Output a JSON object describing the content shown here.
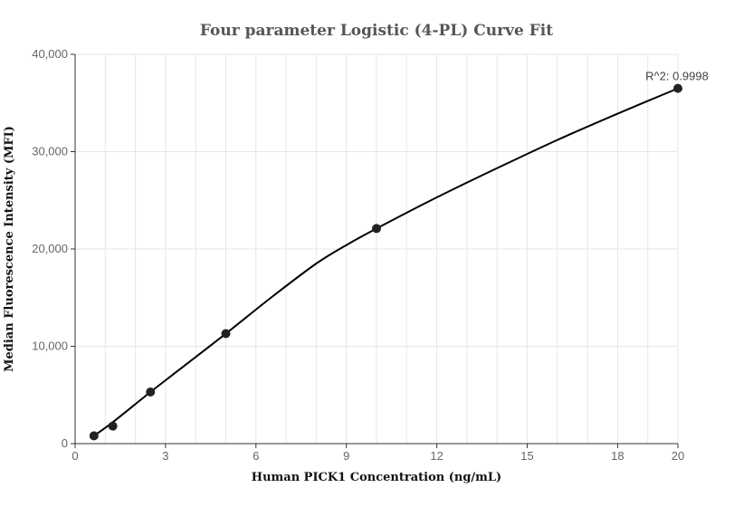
{
  "chart_data": {
    "type": "scatter",
    "title": "Four parameter Logistic (4-PL) Curve Fit",
    "xlabel": "Human PICK1 Concentration (ng/mL)",
    "ylabel": "Median Fluorescence Intensity (MFI)",
    "xlim": [
      0,
      20
    ],
    "ylim": [
      0,
      40000
    ],
    "x_ticks": [
      0,
      3,
      6,
      9,
      12,
      15,
      18,
      20
    ],
    "x_tick_labels": [
      "0",
      "3",
      "6",
      "9",
      "12",
      "15",
      "18",
      "20"
    ],
    "y_ticks": [
      0,
      10000,
      20000,
      30000,
      40000
    ],
    "y_tick_labels": [
      "0",
      "10,000",
      "20,000",
      "30,000",
      "40,000"
    ],
    "grid": true,
    "points": [
      {
        "x": 0.625,
        "y": 800
      },
      {
        "x": 1.25,
        "y": 1800
      },
      {
        "x": 2.5,
        "y": 5300
      },
      {
        "x": 5,
        "y": 11300
      },
      {
        "x": 10,
        "y": 22100
      },
      {
        "x": 20,
        "y": 36500
      }
    ],
    "fit_curve": [
      {
        "x": 0.625,
        "y": 800
      },
      {
        "x": 1.25,
        "y": 2200
      },
      {
        "x": 2.5,
        "y": 5300
      },
      {
        "x": 3.5,
        "y": 7700
      },
      {
        "x": 5,
        "y": 11300
      },
      {
        "x": 6.5,
        "y": 15000
      },
      {
        "x": 8,
        "y": 18500
      },
      {
        "x": 9,
        "y": 20400
      },
      {
        "x": 10,
        "y": 22100
      },
      {
        "x": 12,
        "y": 25300
      },
      {
        "x": 14,
        "y": 28300
      },
      {
        "x": 16,
        "y": 31200
      },
      {
        "x": 18,
        "y": 33900
      },
      {
        "x": 20,
        "y": 36500
      }
    ],
    "annotation": "R^2: 0.9998",
    "colors": {
      "series": "#000000",
      "point": "#222222",
      "grid": "#e6e6e6",
      "axis": "#333333"
    }
  }
}
